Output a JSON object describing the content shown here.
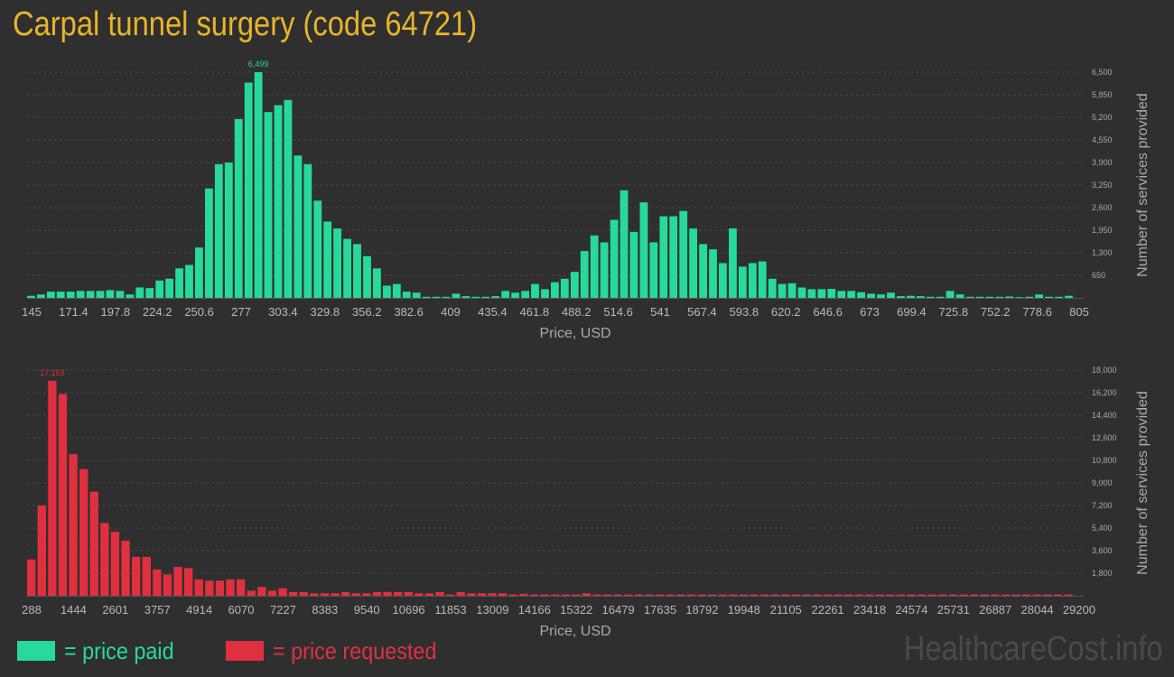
{
  "title": "Carpal tunnel surgery (code 64721)",
  "watermark": "HealthcareCost.info",
  "legend": {
    "paid_label": "= price paid",
    "requested_label": "= price requested",
    "paid_color": "#27d99a",
    "requested_color": "#e0303f"
  },
  "chart_data": [
    {
      "type": "bar",
      "name": "price paid",
      "color": "#27d99a",
      "xlabel": "Price, USD",
      "ylabel": "Number of services provided",
      "xlim": [
        145,
        805
      ],
      "ylim": [
        0,
        6500
      ],
      "x_ticks": [
        "145",
        "171.4",
        "197.8",
        "224.2",
        "250.6",
        "277",
        "303.4",
        "329.8",
        "356.2",
        "382.6",
        "409",
        "435.4",
        "461.8",
        "488.2",
        "514.6",
        "541",
        "567.4",
        "593.8",
        "620.2",
        "646.6",
        "673",
        "699.4",
        "725.8",
        "752.2",
        "778.6",
        "805"
      ],
      "y_ticks": [
        "650",
        "1,300",
        "1,950",
        "2,600",
        "3,250",
        "3,900",
        "4,550",
        "5,200",
        "5,850",
        "6,500"
      ],
      "peak_label": "6,499",
      "values": [
        60,
        100,
        180,
        180,
        180,
        200,
        200,
        200,
        220,
        200,
        100,
        300,
        280,
        500,
        550,
        850,
        950,
        1450,
        3150,
        3850,
        3900,
        5150,
        6200,
        6499,
        5350,
        5550,
        5700,
        4100,
        3850,
        2800,
        2200,
        2000,
        1700,
        1550,
        1200,
        850,
        350,
        400,
        180,
        150,
        30,
        30,
        30,
        120,
        50,
        30,
        30,
        50,
        200,
        150,
        200,
        400,
        250,
        450,
        550,
        750,
        1350,
        1800,
        1600,
        2250,
        3100,
        1900,
        2750,
        1600,
        2350,
        2350,
        2500,
        2000,
        1550,
        1400,
        1000,
        2000,
        900,
        1000,
        1050,
        550,
        400,
        420,
        300,
        250,
        250,
        260,
        200,
        200,
        160,
        120,
        100,
        150,
        50,
        60,
        50,
        30,
        30,
        200,
        100,
        30,
        30,
        30,
        30,
        40,
        20,
        30,
        100,
        30,
        30,
        60
      ]
    },
    {
      "type": "bar",
      "name": "price requested",
      "color": "#e0303f",
      "xlabel": "Price, USD",
      "ylabel": "Number of services provided",
      "xlim": [
        288,
        29200
      ],
      "ylim": [
        0,
        18000
      ],
      "x_ticks": [
        "288",
        "1444",
        "2601",
        "3757",
        "4914",
        "6070",
        "7227",
        "8383",
        "9540",
        "10696",
        "11853",
        "13009",
        "14166",
        "15322",
        "16479",
        "17635",
        "18792",
        "19948",
        "21105",
        "22261",
        "23418",
        "24574",
        "25731",
        "26887",
        "28044",
        "29200"
      ],
      "y_ticks": [
        "1,800",
        "3,600",
        "5,400",
        "7,200",
        "9,000",
        "10,800",
        "12,600",
        "14,400",
        "16,200",
        "18,000"
      ],
      "peak_label": "17,153",
      "values": [
        2900,
        7200,
        17153,
        16100,
        11300,
        10100,
        8300,
        5800,
        5100,
        4400,
        3100,
        3100,
        2100,
        1700,
        2300,
        2200,
        1300,
        1200,
        1200,
        1300,
        1300,
        400,
        700,
        400,
        600,
        300,
        300,
        200,
        200,
        200,
        300,
        200,
        200,
        300,
        300,
        300,
        300,
        200,
        200,
        300,
        100,
        300,
        200,
        200,
        200,
        200,
        100,
        150,
        100,
        100,
        100,
        100,
        100,
        200,
        100,
        100,
        100,
        100,
        100,
        100,
        100,
        100,
        100,
        100,
        100,
        100,
        100,
        100,
        100,
        100,
        100,
        100,
        100,
        100,
        100,
        100,
        100,
        100,
        100,
        100,
        100,
        100,
        100,
        100,
        100,
        100,
        100,
        100,
        100,
        100,
        100,
        100,
        100,
        100,
        100,
        100,
        100,
        100,
        100,
        100
      ]
    }
  ]
}
